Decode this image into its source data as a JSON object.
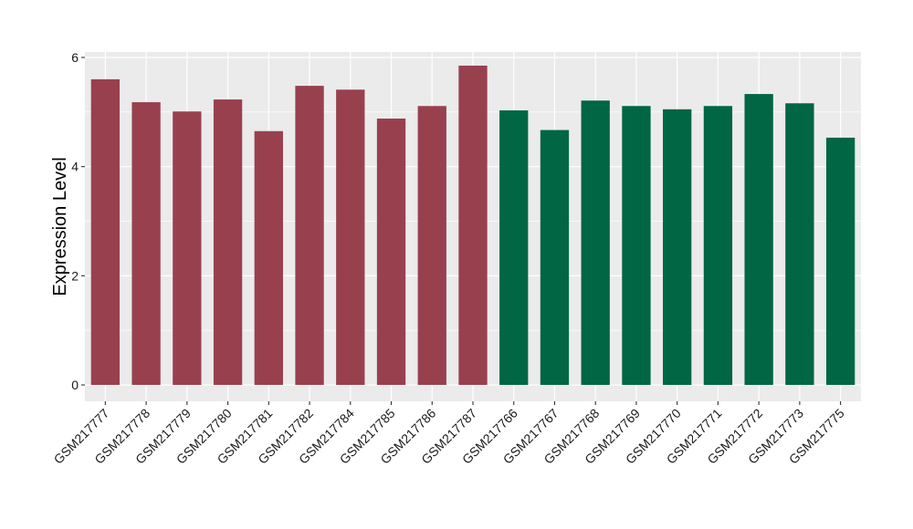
{
  "chart_data": {
    "type": "bar",
    "title": "",
    "xlabel": "",
    "ylabel": "Expression Level",
    "ylim": [
      -0.3,
      6.1
    ],
    "yticks": [
      0,
      2,
      4,
      6
    ],
    "grid": true,
    "legend": "none",
    "categories": [
      "GSM217777",
      "GSM217778",
      "GSM217779",
      "GSM217780",
      "GSM217781",
      "GSM217782",
      "GSM217784",
      "GSM217785",
      "GSM217786",
      "GSM217787",
      "GSM217766",
      "GSM217767",
      "GSM217768",
      "GSM217769",
      "GSM217770",
      "GSM217771",
      "GSM217772",
      "GSM217773",
      "GSM217775"
    ],
    "values": [
      5.6,
      5.18,
      5.01,
      5.23,
      4.65,
      5.48,
      5.41,
      4.88,
      5.11,
      5.85,
      5.03,
      4.67,
      5.21,
      5.11,
      5.05,
      5.11,
      5.33,
      5.16,
      4.53
    ],
    "groups": [
      0,
      0,
      0,
      0,
      0,
      0,
      0,
      0,
      0,
      0,
      1,
      1,
      1,
      1,
      1,
      1,
      1,
      1,
      1
    ],
    "group_colors": [
      "#99404f",
      "#006644"
    ],
    "panel_color": "#ebebeb",
    "grid_color": "#ffffff"
  }
}
